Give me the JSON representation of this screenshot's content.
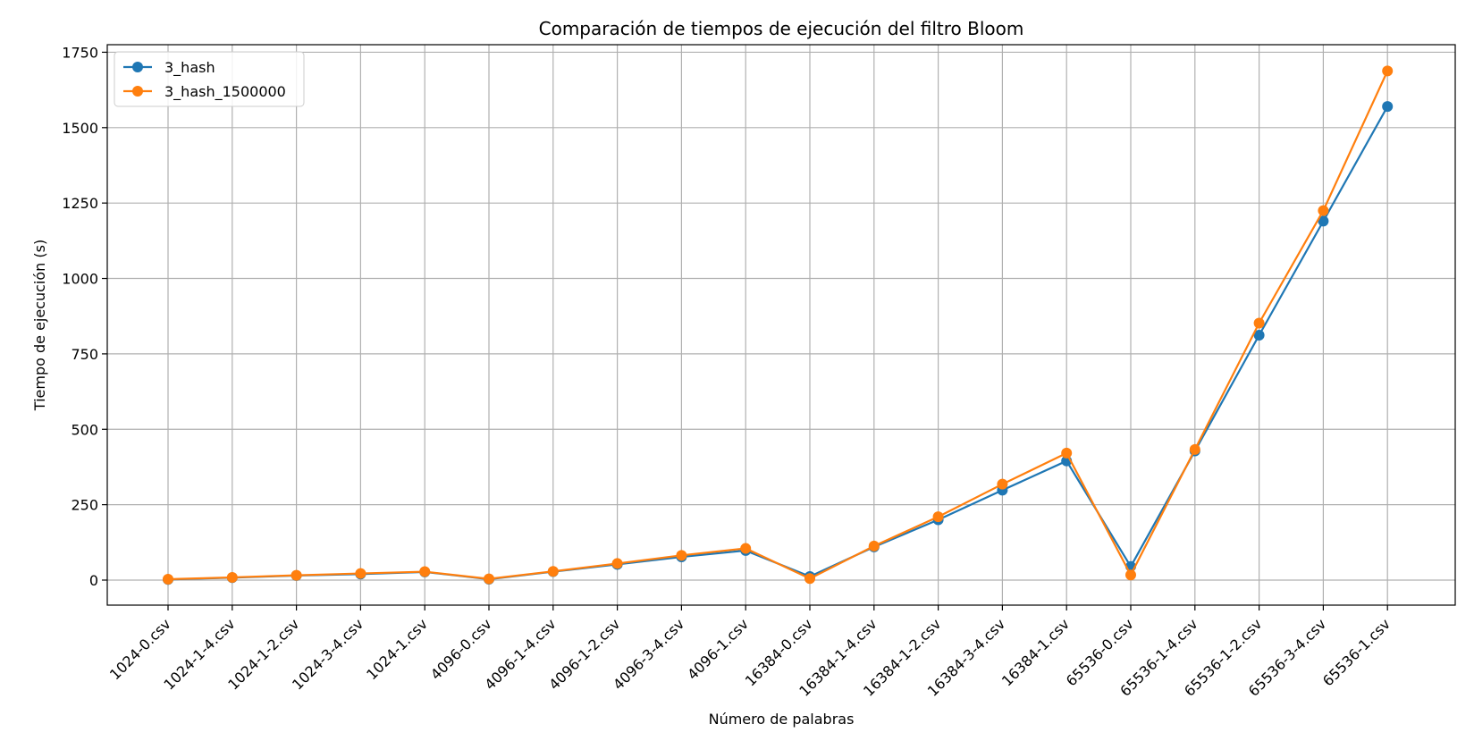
{
  "chart_data": {
    "type": "line",
    "title": "Comparación de tiempos de ejecución del filtro Bloom",
    "xlabel": "Número de palabras",
    "ylabel": "Tiempo de ejecución (s)",
    "categories": [
      "1024-0.csv",
      "1024-1-4.csv",
      "1024-1-2.csv",
      "1024-3-4.csv",
      "1024-1.csv",
      "4096-0.csv",
      "4096-1-4.csv",
      "4096-1-2.csv",
      "4096-3-4.csv",
      "4096-1.csv",
      "16384-0.csv",
      "16384-1-4.csv",
      "16384-1-2.csv",
      "16384-3-4.csv",
      "16384-1.csv",
      "65536-0.csv",
      "65536-1-4.csv",
      "65536-1-2.csv",
      "65536-3-4.csv",
      "65536-1.csv"
    ],
    "series": [
      {
        "name": "3_hash",
        "color": "#1f77b4",
        "values": [
          2,
          8,
          15,
          20,
          27,
          3,
          28,
          52,
          77,
          98,
          12,
          110,
          200,
          298,
          395,
          45,
          428,
          812,
          1190,
          1570
        ]
      },
      {
        "name": "3_hash_1500000",
        "color": "#ff7f0e",
        "values": [
          3,
          9,
          16,
          22,
          28,
          4,
          29,
          55,
          82,
          105,
          5,
          113,
          210,
          318,
          421,
          17,
          433,
          852,
          1225,
          1688
        ]
      }
    ],
    "ylim": [
      -83,
      1775
    ],
    "yticks": [
      0,
      250,
      500,
      750,
      1000,
      1250,
      1500,
      1750
    ],
    "grid": true,
    "legend": "upper-left"
  }
}
